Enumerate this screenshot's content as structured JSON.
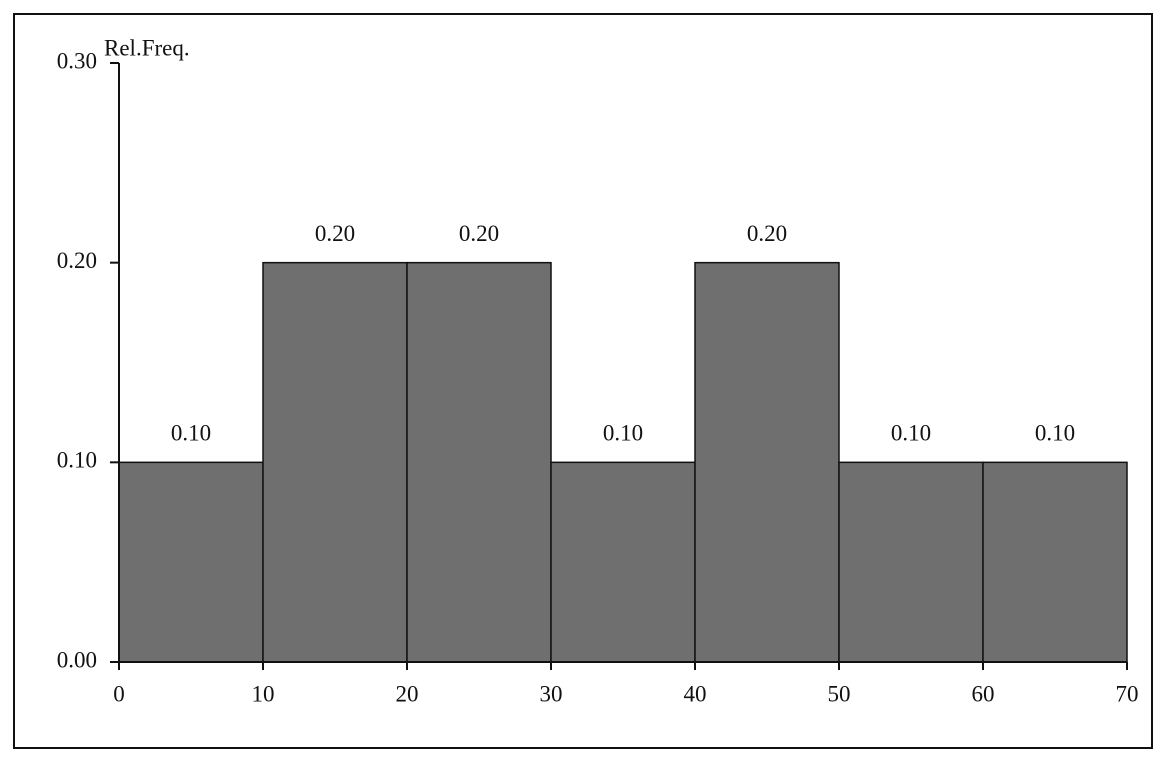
{
  "chart_data": {
    "type": "histogram",
    "y_label": "Rel.Freq.",
    "bins": [
      0,
      10,
      20,
      30,
      40,
      50,
      60,
      70
    ],
    "values": [
      0.1,
      0.2,
      0.2,
      0.1,
      0.2,
      0.1,
      0.1
    ],
    "value_labels": [
      "0.10",
      "0.20",
      "0.20",
      "0.10",
      "0.20",
      "0.10",
      "0.10"
    ],
    "color": "#6f6f6f",
    "xlim": [
      0,
      70
    ],
    "xticks": [
      0,
      10,
      20,
      30,
      40,
      50,
      60,
      70
    ],
    "ylim": [
      0,
      0.3
    ],
    "yticks": [
      {
        "value": 0,
        "label": "0.00"
      },
      {
        "value": 0.1,
        "label": "0.10"
      },
      {
        "value": 0.2,
        "label": "0.20"
      },
      {
        "value": 0.3,
        "label": "0.30"
      }
    ]
  }
}
